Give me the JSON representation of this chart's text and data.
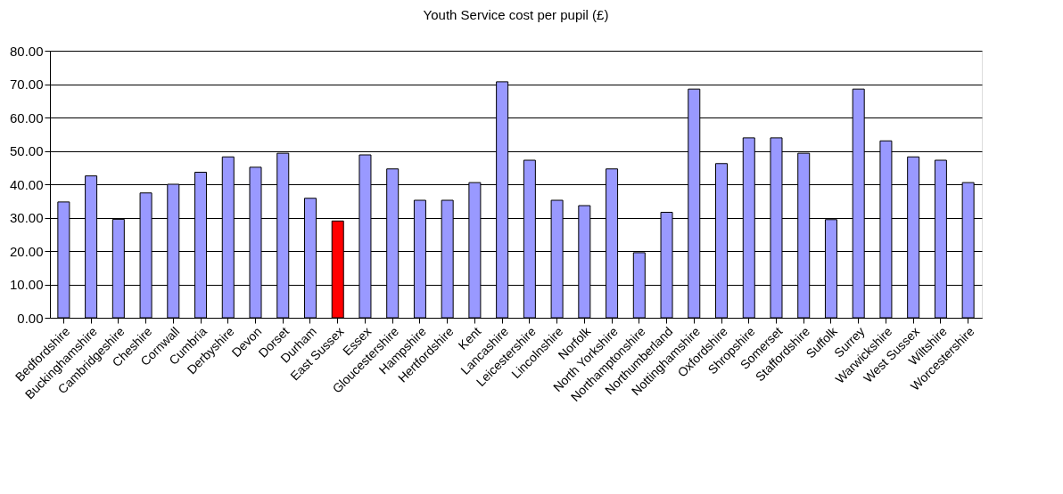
{
  "chart_data": {
    "type": "bar",
    "title": "Youth Service cost per pupil (£)",
    "categories": [
      "Bedfordshire",
      "Buckinghamshire",
      "Cambridgeshire",
      "Cheshire",
      "Cornwall",
      "Cumbria",
      "Derbyshire",
      "Devon",
      "Dorset",
      "Durham",
      "East Sussex",
      "Essex",
      "Gloucestershire",
      "Hampshire",
      "Hertfordshire",
      "Kent",
      "Lancashire",
      "Leicestershire",
      "Lincolnshire",
      "Norfolk",
      "North Yorkshire",
      "Northamptonshire",
      "Northumberland",
      "Nottinghamshire",
      "Oxfordshire",
      "Shropshire",
      "Somerset",
      "Staffordshire",
      "Suffolk",
      "Surrey",
      "Warwickshire",
      "West Sussex",
      "Wiltshire",
      "Worcestershire"
    ],
    "values": [
      34.7,
      42.5,
      29.5,
      37.4,
      40.0,
      43.6,
      48.2,
      45.1,
      49.3,
      35.8,
      29.0,
      48.8,
      44.6,
      35.2,
      35.2,
      40.5,
      70.7,
      47.2,
      35.2,
      33.6,
      44.6,
      19.5,
      31.6,
      68.5,
      46.2,
      53.9,
      53.9,
      49.3,
      29.4,
      68.5,
      53.0,
      48.2,
      47.2,
      40.5
    ],
    "colors": [
      "#9999ff",
      "#9999ff",
      "#9999ff",
      "#9999ff",
      "#9999ff",
      "#9999ff",
      "#9999ff",
      "#9999ff",
      "#9999ff",
      "#9999ff",
      "#ff0000",
      "#9999ff",
      "#9999ff",
      "#9999ff",
      "#9999ff",
      "#9999ff",
      "#9999ff",
      "#9999ff",
      "#9999ff",
      "#9999ff",
      "#9999ff",
      "#9999ff",
      "#9999ff",
      "#9999ff",
      "#9999ff",
      "#9999ff",
      "#9999ff",
      "#9999ff",
      "#9999ff",
      "#9999ff",
      "#9999ff",
      "#9999ff",
      "#9999ff",
      "#9999ff"
    ],
    "ylim": [
      0,
      80
    ],
    "yticks": [
      {
        "value": 0,
        "label": "0.00"
      },
      {
        "value": 10,
        "label": "10.00"
      },
      {
        "value": 20,
        "label": "20.00"
      },
      {
        "value": 30,
        "label": "30.00"
      },
      {
        "value": 40,
        "label": "40.00"
      },
      {
        "value": 50,
        "label": "50.00"
      },
      {
        "value": 60,
        "label": "60.00"
      },
      {
        "value": 70,
        "label": "70.00"
      },
      {
        "value": 80,
        "label": "80.00"
      }
    ],
    "grid": "y"
  }
}
